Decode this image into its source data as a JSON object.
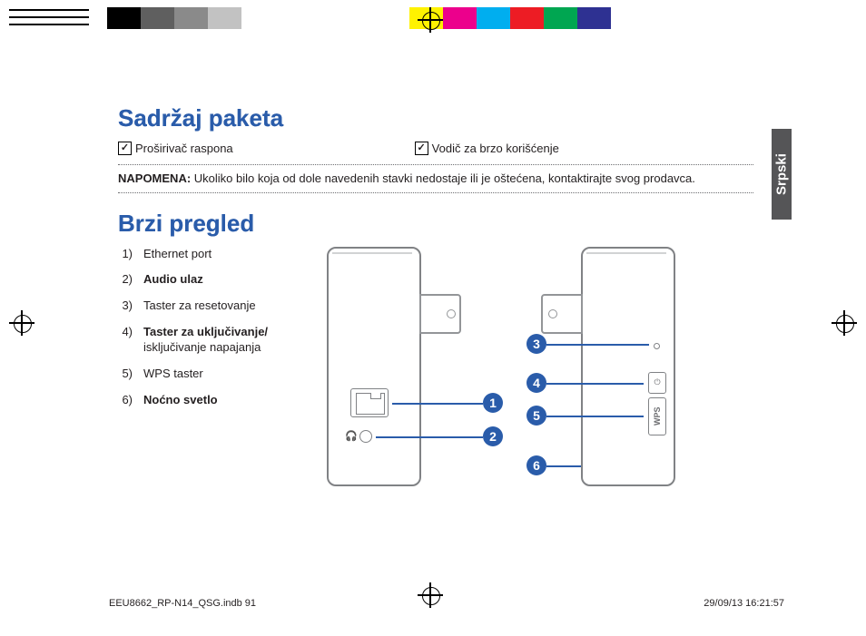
{
  "printbar": {
    "swatches": [
      "#000000",
      "#5f5f5f",
      "#8a8a8a",
      "#c2c2c2",
      "#ffffff",
      "#ffffff",
      "#ffffff",
      "#ffffff",
      "#ffffff",
      "#fff200",
      "#ec008c",
      "#00aeef",
      "#ed1c24",
      "#00a651",
      "#2e3192",
      "#ffffff",
      "#ffffff",
      "#ffffff",
      "#ffffff"
    ]
  },
  "header": {
    "title": "Sadržaj paketa"
  },
  "items": [
    {
      "label": "Proširivač raspona"
    },
    {
      "label": "Vodič za brzo korišćenje"
    }
  ],
  "note": {
    "label": "NAPOMENA:",
    "text": " Ukoliko bilo koja od dole navedenih stavki nedostaje ili je oštećena, kontaktirajte svog prodavca."
  },
  "sideTab": "Srpski",
  "overview": {
    "title": "Brzi pregled"
  },
  "legend": [
    {
      "n": "1)",
      "t": "Ethernet port",
      "bold": false
    },
    {
      "n": "2)",
      "t": "Audio ulaz",
      "bold": true
    },
    {
      "n": "3)",
      "t": "Taster za resetovanje",
      "bold": false
    },
    {
      "n": "4)",
      "t": "Taster za uključivanje/",
      "t2": "isključivanje napajanja",
      "bold": true
    },
    {
      "n": "5)",
      "t": "WPS taster",
      "bold": false
    },
    {
      "n": "6)",
      "t": "Noćno svetlo",
      "bold": true
    }
  ],
  "badges": {
    "b1": "1",
    "b2": "2",
    "b3": "3",
    "b4": "4",
    "b5": "5",
    "b6": "6"
  },
  "wps": "WPS",
  "footer": {
    "left": "EEU8662_RP-N14_QSG.indb   91",
    "right": "29/09/13   16:21:57"
  }
}
